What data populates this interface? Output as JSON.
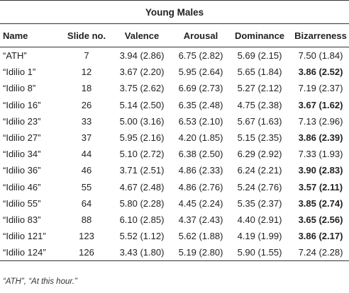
{
  "table": {
    "title": "Young Males",
    "headers": [
      "Name",
      "Slide no.",
      "Valence",
      "Arousal",
      "Dominance",
      "Bizarreness"
    ],
    "rows": [
      {
        "name": "“ATH”",
        "slide": "7",
        "valence": "3.94 (2.86)",
        "arousal": "6.75 (2.82)",
        "dominance": "5.69 (2.15)",
        "bizarreness": "7.50 (1.84)",
        "biz_bold": false
      },
      {
        "name": "“Idilio 1”",
        "slide": "12",
        "valence": "3.67 (2.20)",
        "arousal": "5.95 (2.64)",
        "dominance": "5.65 (1.84)",
        "bizarreness": "3.86 (2.52)",
        "biz_bold": true
      },
      {
        "name": "“Idilio 8”",
        "slide": "18",
        "valence": "3.75 (2.62)",
        "arousal": "6.69 (2.73)",
        "dominance": "5.27 (2.12)",
        "bizarreness": "7.19 (2.37)",
        "biz_bold": false
      },
      {
        "name": "“Idilio 16”",
        "slide": "26",
        "valence": "5.14 (2.50)",
        "arousal": "6.35 (2.48)",
        "dominance": "4.75 (2.38)",
        "bizarreness": "3.67 (1.62)",
        "biz_bold": true
      },
      {
        "name": "“Idilio 23”",
        "slide": "33",
        "valence": "5.00 (3.16)",
        "arousal": "6.53 (2.10)",
        "dominance": "5.67 (1.63)",
        "bizarreness": "7.13 (2.96)",
        "biz_bold": false
      },
      {
        "name": "“Idilio 27”",
        "slide": "37",
        "valence": "5.95 (2.16)",
        "arousal": "4.20 (1.85)",
        "dominance": "5.15 (2.35)",
        "bizarreness": "3.86 (2.39)",
        "biz_bold": true
      },
      {
        "name": "“Idilio 34”",
        "slide": "44",
        "valence": "5.10 (2.72)",
        "arousal": "6.38 (2.50)",
        "dominance": "6.29 (2.92)",
        "bizarreness": "7.33 (1.93)",
        "biz_bold": false
      },
      {
        "name": "“Idilio 36”",
        "slide": "46",
        "valence": "3.71 (2.51)",
        "arousal": "4.86 (2.33)",
        "dominance": "6.24 (2.21)",
        "bizarreness": "3.90 (2.83)",
        "biz_bold": true
      },
      {
        "name": "“Idilio 46”",
        "slide": "55",
        "valence": "4.67 (2.48)",
        "arousal": "4.86 (2.76)",
        "dominance": "5.24 (2.76)",
        "bizarreness": "3.57 (2.11)",
        "biz_bold": true
      },
      {
        "name": "“Idilio 55”",
        "slide": "64",
        "valence": "5.80 (2.28)",
        "arousal": "4.45 (2.24)",
        "dominance": "5.35 (2.37)",
        "bizarreness": "3.85 (2.74)",
        "biz_bold": true
      },
      {
        "name": "“Idilio 83”",
        "slide": "88",
        "valence": "6.10 (2.85)",
        "arousal": "4.37 (2.43)",
        "dominance": "4.40 (2.91)",
        "bizarreness": "3.65 (2.56)",
        "biz_bold": true
      },
      {
        "name": "“Idilio 121”",
        "slide": "123",
        "valence": "5.52 (1.12)",
        "arousal": "5.62 (1.88)",
        "dominance": "4.19 (1.99)",
        "bizarreness": "3.86 (2.17)",
        "biz_bold": true
      },
      {
        "name": "“Idilio 124”",
        "slide": "126",
        "valence": "3.43 (1.80)",
        "arousal": "5.19 (2.80)",
        "dominance": "5.90 (1.55)",
        "bizarreness": "7.24 (2.28)",
        "biz_bold": false
      }
    ]
  },
  "footnote": "“ATH”, “At this hour.”"
}
